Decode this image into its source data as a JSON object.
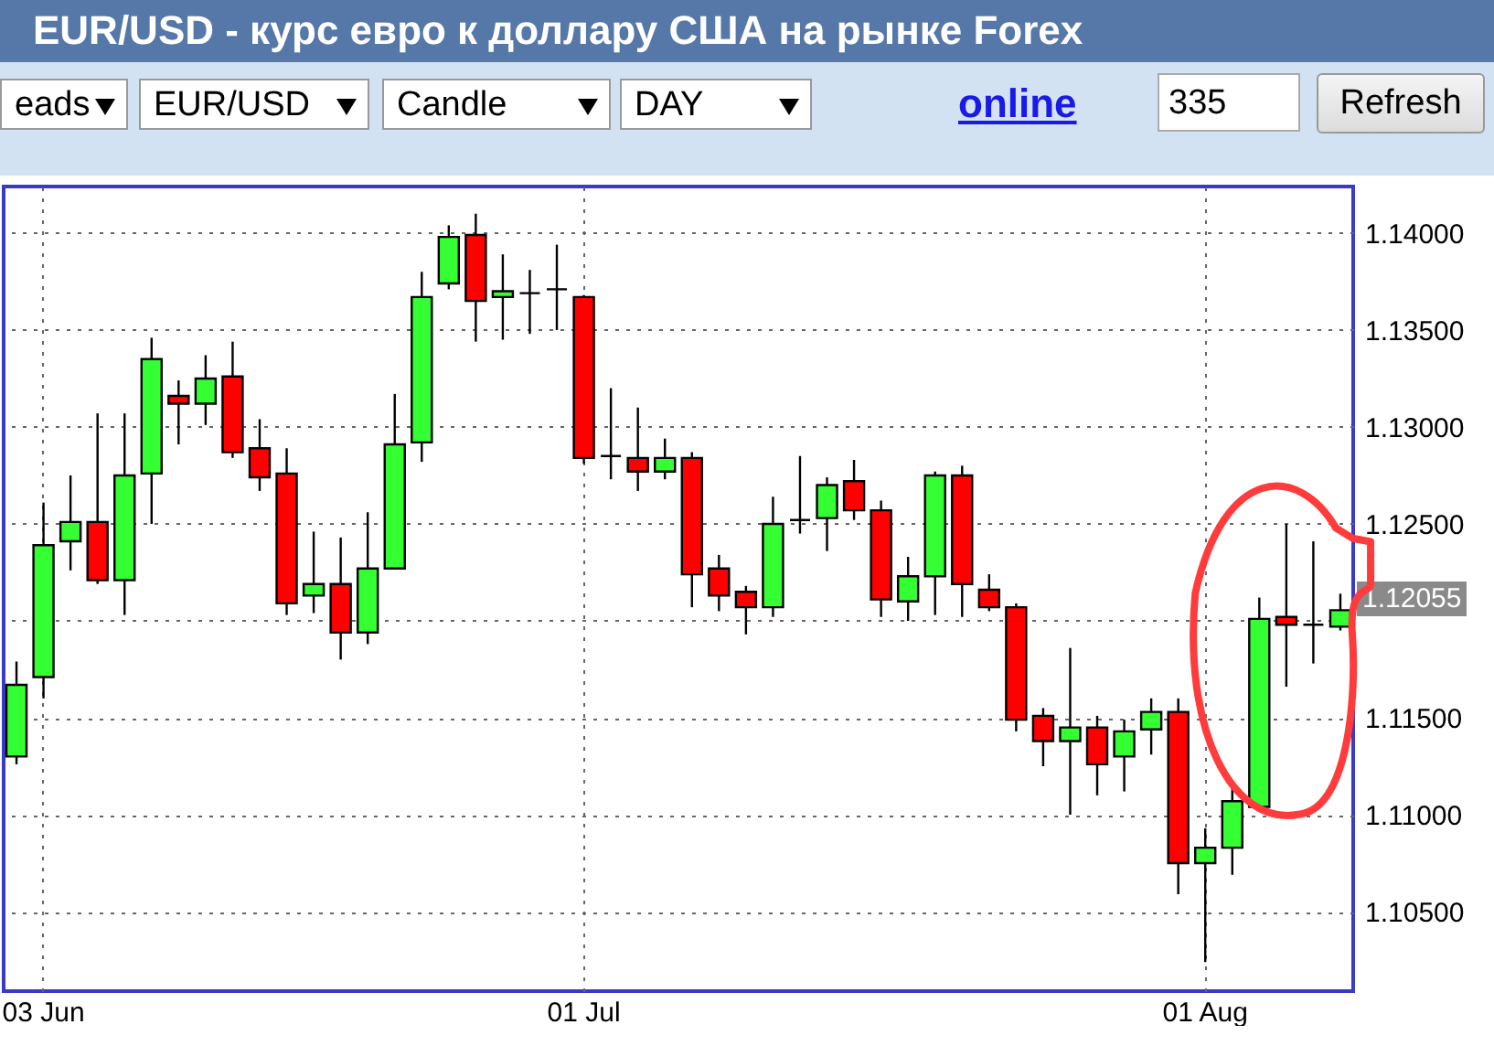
{
  "chart_data": {
    "type": "candlestick",
    "title": "EUR/USD - курс евро к доллару США на рынке Forex",
    "categories": [
      null,
      "03 Jun",
      null,
      null,
      null,
      null,
      null,
      null,
      null,
      null,
      null,
      null,
      null,
      null,
      null,
      null,
      null,
      null,
      null,
      null,
      null,
      "01 Jul",
      null,
      null,
      null,
      null,
      null,
      null,
      null,
      null,
      null,
      null,
      null,
      null,
      null,
      null,
      null,
      null,
      null,
      null,
      null,
      null,
      null,
      null,
      "01 Aug",
      null,
      null,
      null,
      null,
      null
    ],
    "ohlc": [
      [
        1.113,
        1.1179,
        1.1126,
        1.1167
      ],
      [
        1.1171,
        1.1261,
        1.116,
        1.1239
      ],
      [
        1.1241,
        1.1275,
        1.1226,
        1.1251
      ],
      [
        1.1251,
        1.1307,
        1.1219,
        1.1221
      ],
      [
        1.1221,
        1.1307,
        1.1203,
        1.1275
      ],
      [
        1.1276,
        1.1346,
        1.125,
        1.1335
      ],
      [
        1.1316,
        1.1324,
        1.1291,
        1.1312
      ],
      [
        1.1312,
        1.1337,
        1.1301,
        1.1325
      ],
      [
        1.1326,
        1.1344,
        1.1284,
        1.1287
      ],
      [
        1.1289,
        1.1304,
        1.1267,
        1.1274
      ],
      [
        1.1276,
        1.1289,
        1.1203,
        1.1209
      ],
      [
        1.1213,
        1.1246,
        1.1204,
        1.1219
      ],
      [
        1.1219,
        1.1243,
        1.118,
        1.1194
      ],
      [
        1.1194,
        1.1256,
        1.1188,
        1.1227
      ],
      [
        1.1227,
        1.1317,
        1.1227,
        1.1291
      ],
      [
        1.1292,
        1.138,
        1.1282,
        1.1367
      ],
      [
        1.1374,
        1.1404,
        1.1371,
        1.1398
      ],
      [
        1.1399,
        1.141,
        1.1344,
        1.1365
      ],
      [
        1.1367,
        1.1389,
        1.1345,
        1.137
      ],
      [
        1.1369,
        1.1381,
        1.1348,
        1.1369
      ],
      [
        1.1371,
        1.1394,
        1.135,
        1.1371
      ],
      [
        1.1367,
        1.1368,
        1.1281,
        1.1284
      ],
      [
        1.1285,
        1.132,
        1.1273,
        1.1285
      ],
      [
        1.1284,
        1.131,
        1.1267,
        1.1277
      ],
      [
        1.1277,
        1.1294,
        1.1273,
        1.1284
      ],
      [
        1.1284,
        1.1287,
        1.1207,
        1.1224
      ],
      [
        1.1227,
        1.1234,
        1.1205,
        1.1213
      ],
      [
        1.1215,
        1.1218,
        1.1193,
        1.1207
      ],
      [
        1.1207,
        1.1264,
        1.1202,
        1.125
      ],
      [
        1.1252,
        1.1285,
        1.1245,
        1.1252
      ],
      [
        1.1253,
        1.1274,
        1.1236,
        1.127
      ],
      [
        1.1272,
        1.1283,
        1.1252,
        1.1257
      ],
      [
        1.1257,
        1.1262,
        1.1202,
        1.1211
      ],
      [
        1.121,
        1.1233,
        1.12,
        1.1223
      ],
      [
        1.1223,
        1.1277,
        1.1203,
        1.1275
      ],
      [
        1.1275,
        1.128,
        1.1202,
        1.1219
      ],
      [
        1.1216,
        1.1224,
        1.1205,
        1.1207
      ],
      [
        1.1207,
        1.1209,
        1.1143,
        1.1149
      ],
      [
        1.1151,
        1.1155,
        1.1125,
        1.1138
      ],
      [
        1.1138,
        1.1186,
        1.11,
        1.1145
      ],
      [
        1.1145,
        1.1151,
        1.111,
        1.1126
      ],
      [
        1.113,
        1.1149,
        1.1112,
        1.1143
      ],
      [
        1.1144,
        1.116,
        1.1131,
        1.1153
      ],
      [
        1.1153,
        1.116,
        1.1059,
        1.1075
      ],
      [
        1.1075,
        1.1093,
        1.1024,
        1.1083
      ],
      [
        1.1083,
        1.1114,
        1.1069,
        1.1107
      ],
      [
        1.1104,
        1.1212,
        1.1104,
        1.1201
      ],
      [
        1.1202,
        1.125,
        1.1166,
        1.1198
      ],
      [
        1.1198,
        1.1241,
        1.1178,
        1.1198
      ],
      [
        1.1197,
        1.1214,
        1.1195,
        1.12055
      ]
    ],
    "colors": [
      "#33ff33",
      "#33ff33",
      "#33ff33",
      "#ff0000",
      "#33ff33",
      "#33ff33",
      "#ff0000",
      "#33ff33",
      "#ff0000",
      "#ff0000",
      "#ff0000",
      "#33ff33",
      "#ff0000",
      "#33ff33",
      "#33ff33",
      "#33ff33",
      "#33ff33",
      "#ff0000",
      "#33ff33",
      "#000000",
      "#000000",
      "#ff0000",
      "#000000",
      "#ff0000",
      "#33ff33",
      "#ff0000",
      "#ff0000",
      "#ff0000",
      "#33ff33",
      "#000000",
      "#33ff33",
      "#ff0000",
      "#ff0000",
      "#33ff33",
      "#33ff33",
      "#ff0000",
      "#ff0000",
      "#ff0000",
      "#ff0000",
      "#33ff33",
      "#ff0000",
      "#33ff33",
      "#33ff33",
      "#ff0000",
      "#33ff33",
      "#33ff33",
      "#33ff33",
      "#ff0000",
      "#000000",
      "#33ff33"
    ],
    "ylim": [
      1.1009,
      1.1424
    ],
    "yticks": [
      {
        "value": 1.105,
        "label": "1.10500"
      },
      {
        "value": 1.11,
        "label": "1.11000"
      },
      {
        "value": 1.115,
        "label": "1.11500"
      },
      {
        "value": 1.12,
        "label": null
      },
      {
        "value": 1.125,
        "label": "1.12500"
      },
      {
        "value": 1.13,
        "label": "1.13000"
      },
      {
        "value": 1.135,
        "label": "1.13500"
      },
      {
        "value": 1.14,
        "label": "1.14000"
      }
    ],
    "grid": true,
    "annotations": [
      "eads",
      "EUR/USD",
      "Candle",
      "DAY",
      "online",
      "335",
      "Refresh",
      "1.12055"
    ]
  }
}
